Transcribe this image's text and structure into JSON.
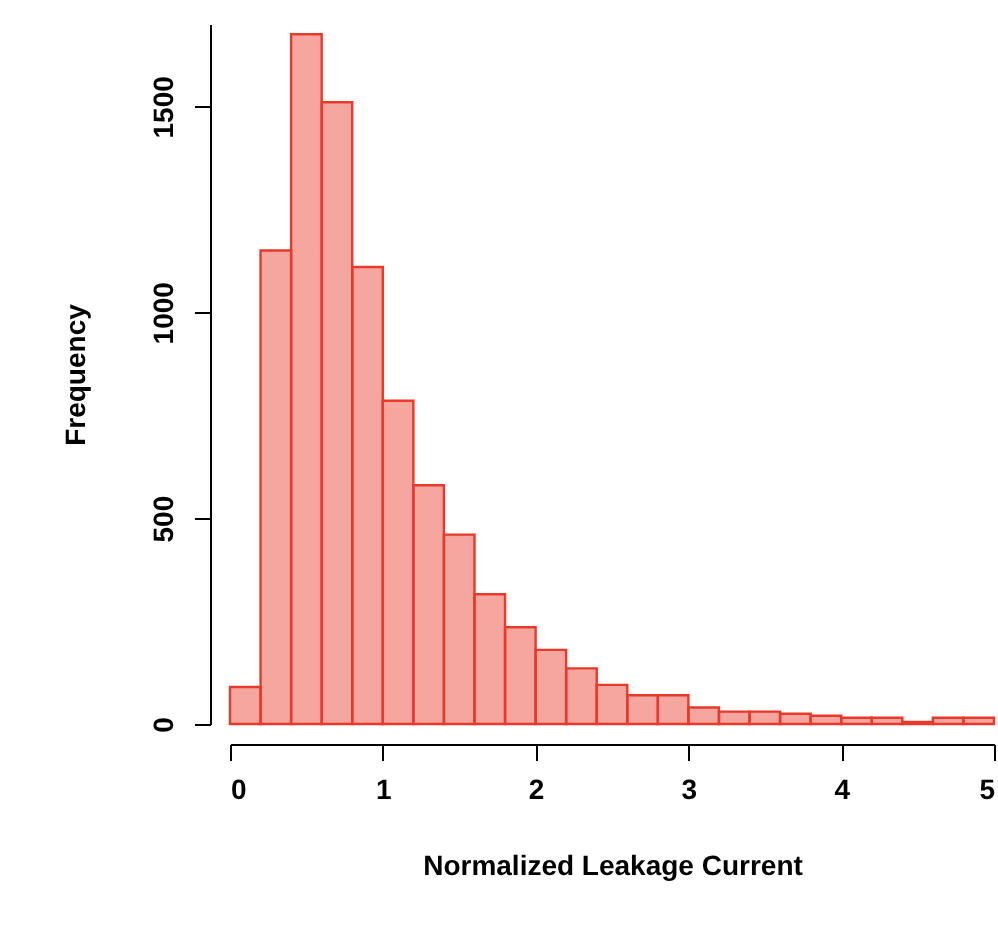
{
  "chart_data": {
    "type": "histogram",
    "xlabel": "Normalized Leakage Current",
    "ylabel": "Frequency",
    "bins": [
      0,
      0.2,
      0.4,
      0.6,
      0.8,
      1,
      1.2,
      1.4,
      1.6,
      1.8,
      2,
      2.2,
      2.4,
      2.6,
      2.8,
      3,
      3.2,
      3.4,
      3.6,
      3.8,
      4,
      4.2,
      4.4,
      4.6,
      4.8,
      5
    ],
    "values": [
      90,
      1150,
      1675,
      1510,
      1110,
      785,
      580,
      460,
      315,
      235,
      180,
      135,
      95,
      70,
      70,
      40,
      30,
      30,
      25,
      20,
      15,
      15,
      5,
      15,
      15
    ],
    "color": "#e8392a",
    "xlim": [
      0,
      5
    ],
    "xticks": [
      0,
      1,
      2,
      3,
      4,
      5
    ],
    "ylim": [
      0,
      1700
    ],
    "yticks": [
      0,
      500,
      1000,
      1500
    ],
    "grid": false
  }
}
